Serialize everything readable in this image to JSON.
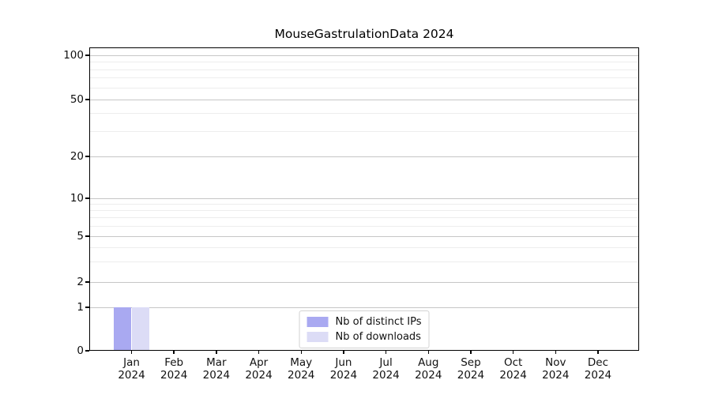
{
  "figure": {
    "title": "MouseGastrulationData 2024"
  },
  "chart_data": {
    "type": "bar",
    "title": "MouseGastrulationData 2024",
    "categories": [
      "Jan 2024",
      "Feb 2024",
      "Mar 2024",
      "Apr 2024",
      "May 2024",
      "Jun 2024",
      "Jul 2024",
      "Aug 2024",
      "Sep 2024",
      "Oct 2024",
      "Nov 2024",
      "Dec 2024"
    ],
    "x_month_labels": [
      "Jan",
      "Feb",
      "Mar",
      "Apr",
      "May",
      "Jun",
      "Jul",
      "Aug",
      "Sep",
      "Oct",
      "Nov",
      "Dec"
    ],
    "x_year_label": "2024",
    "series": [
      {
        "name": "Nb of distinct IPs",
        "color": "#a9a9f1",
        "values": [
          1,
          0,
          0,
          0,
          0,
          0,
          0,
          0,
          0,
          0,
          0,
          0
        ]
      },
      {
        "name": "Nb of downloads",
        "color": "#dcdcf6",
        "values": [
          1,
          0,
          0,
          0,
          0,
          0,
          0,
          0,
          0,
          0,
          0,
          0
        ]
      }
    ],
    "yscale": "log-like (0 baseline, log above 1)",
    "ytick_labels": [
      0,
      1,
      2,
      5,
      10,
      20,
      50,
      100
    ],
    "yticks_minor": [
      3,
      4,
      6,
      7,
      8,
      9,
      30,
      40,
      60,
      70,
      80,
      90
    ],
    "ylim": [
      0,
      115
    ],
    "grid": true,
    "legend_position": "bottom-center",
    "colors": {
      "grid_major": "#c6c6c6",
      "grid_minor": "#ededed",
      "axis": "#000000",
      "text": "#111111",
      "legend_border": "#d2d2d2",
      "background": "#ffffff"
    }
  }
}
